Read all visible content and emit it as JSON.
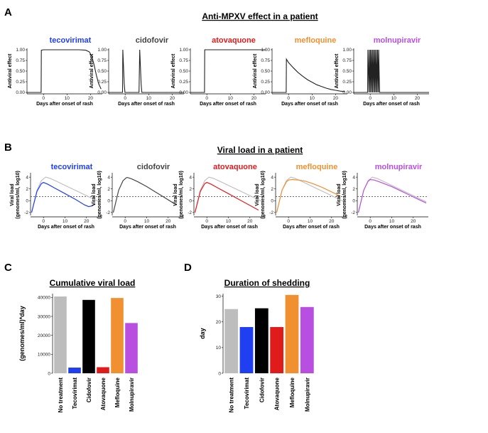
{
  "colors": {
    "tecovirimat": "#1f3ff0",
    "cidofovir": "#444444",
    "atovaquone": "#e01b1b",
    "mefloquine": "#f09030",
    "molnupiravir": "#b84fe0",
    "no_treatment": "#bdbdbd",
    "black": "#000000"
  },
  "panels": {
    "A": {
      "letter": "A",
      "title": "Anti-MPXV effect in a patient",
      "ylabel": "Antiviral effect",
      "xlabel": "Days after onset of rash",
      "yticks": [
        "0.00",
        "0.25",
        "0.50",
        "0.75",
        "1.00"
      ],
      "xticks": [
        "0",
        "10",
        "20"
      ],
      "drugs": [
        "tecovirimat",
        "cidofovir",
        "atovaquone",
        "mefloquine",
        "molnupiravir"
      ]
    },
    "B": {
      "letter": "B",
      "title": "Viral load in a patient",
      "ylabel1": "Viral load",
      "ylabel2": "(genomes/ml, log10)",
      "xlabel": "Days after onset of rash",
      "yticks": [
        "-2",
        "0",
        "2",
        "4"
      ],
      "xticks": [
        "0",
        "10",
        "20"
      ],
      "drugs": [
        "tecovirimat",
        "cidofovir",
        "atovaquone",
        "mefloquine",
        "molnupiravir"
      ]
    },
    "C": {
      "letter": "C",
      "title": "Cumulative viral load",
      "ylabel": "(genomes/ml)*day",
      "yticks": [
        "0",
        "10000",
        "20000",
        "30000",
        "40000"
      ]
    },
    "D": {
      "letter": "D",
      "title": "Duration of shedding",
      "ylabel": "day",
      "yticks": [
        "0",
        "10",
        "20",
        "30"
      ]
    }
  },
  "chart_data": [
    {
      "id": "A",
      "type": "line",
      "title": "Anti-MPXV effect in a patient",
      "xlabel": "Days after onset of rash",
      "ylabel": "Antiviral effect",
      "xlim": [
        -7,
        25
      ],
      "ylim": [
        0,
        1
      ],
      "series": [
        {
          "name": "tecovirimat",
          "x": [
            -7,
            -1,
            -0.9,
            0,
            5,
            10,
            15,
            18,
            19.5,
            20.5,
            21.5,
            22.5,
            23.5,
            24.5
          ],
          "y": [
            0,
            0,
            0.99,
            1,
            1,
            1,
            1,
            0.99,
            0.95,
            0.85,
            0.65,
            0.4,
            0.2,
            0.08
          ]
        },
        {
          "name": "cidofovir",
          "x": [
            -7,
            -1.1,
            -1,
            -0.4,
            -0.1,
            5.9,
            6.2,
            6.8,
            7.1,
            25
          ],
          "y": [
            0,
            0,
            1,
            0.2,
            0,
            0,
            1,
            0.2,
            0,
            0
          ]
        },
        {
          "name": "atovaquone",
          "x": [
            -7,
            -1,
            -0.9,
            5,
            10,
            15,
            20,
            25
          ],
          "y": [
            0,
            0,
            1,
            1,
            1,
            1,
            1,
            1
          ]
        },
        {
          "name": "mefloquine",
          "x": [
            -7,
            -1,
            -0.9,
            0,
            2,
            4,
            6,
            8,
            10,
            12,
            14,
            16,
            18,
            20,
            22,
            24
          ],
          "y": [
            0,
            0,
            0.78,
            0.7,
            0.58,
            0.47,
            0.38,
            0.3,
            0.24,
            0.18,
            0.14,
            0.1,
            0.07,
            0.05,
            0.03,
            0.02
          ]
        },
        {
          "name": "molnupiravir",
          "x": [
            -7,
            -1.1,
            -1,
            -0.5,
            -0.4,
            0,
            0.1,
            0.5,
            0.6,
            1,
            1.1,
            1.5,
            1.6,
            2,
            2.1,
            2.5,
            2.6,
            3,
            3.1,
            3.5,
            3.6,
            4,
            4.1,
            25
          ],
          "y": [
            0,
            0,
            1,
            0,
            1,
            0,
            1,
            0,
            1,
            0,
            1,
            0,
            1,
            0,
            1,
            0,
            1,
            0,
            1,
            0,
            1,
            0,
            0,
            0
          ]
        }
      ]
    },
    {
      "id": "B",
      "type": "line",
      "title": "Viral load in a patient",
      "xlabel": "Days after onset of rash",
      "ylabel": "Viral load (genomes/ml, log10)",
      "xlim": [
        -6,
        27
      ],
      "ylim": [
        -2.5,
        4.5
      ],
      "threshold": 0.7,
      "no_treatment": {
        "x": [
          -5.5,
          -3,
          -1,
          1,
          3,
          6,
          10,
          14,
          18,
          22,
          26
        ],
        "y": [
          -2,
          1.8,
          3.4,
          4.0,
          3.8,
          3.3,
          2.6,
          1.9,
          1.2,
          0.5,
          -0.2
        ]
      },
      "series": [
        {
          "name": "tecovirimat",
          "x": [
            -5.5,
            -3,
            -1,
            0,
            2,
            5,
            10,
            15,
            19,
            21,
            22.5,
            24
          ],
          "y": [
            -2,
            1.6,
            2.9,
            3.1,
            2.8,
            2.2,
            1.2,
            0.2,
            -0.7,
            -1.0,
            -0.9,
            -0.5
          ]
        },
        {
          "name": "cidofovir",
          "x": [
            -5.5,
            -3,
            -1,
            0.5,
            1,
            3,
            6,
            10,
            14,
            18,
            22,
            24
          ],
          "y": [
            -2,
            1.8,
            3.4,
            3.9,
            3.95,
            3.7,
            3.2,
            2.4,
            1.5,
            0.6,
            -0.3,
            -0.7
          ]
        },
        {
          "name": "atovaquone",
          "x": [
            -5.5,
            -3,
            -1,
            0,
            2,
            5,
            10,
            15,
            20,
            24
          ],
          "y": [
            -2,
            1.6,
            2.9,
            3.1,
            2.8,
            2.2,
            1.2,
            0.2,
            -0.8,
            -1.6
          ]
        },
        {
          "name": "mefloquine",
          "x": [
            -5.5,
            -3,
            -1,
            0,
            1.5,
            3,
            5,
            8,
            12,
            16,
            20,
            24
          ],
          "y": [
            -2,
            1.8,
            3.2,
            3.5,
            3.6,
            3.55,
            3.5,
            3.3,
            2.8,
            2.2,
            1.5,
            0.8
          ]
        },
        {
          "name": "molnupiravir",
          "x": [
            -5.5,
            -3,
            -1,
            0,
            2,
            5,
            10,
            14,
            18,
            22,
            26
          ],
          "y": [
            -2,
            1.8,
            3.3,
            3.6,
            3.5,
            3.1,
            2.4,
            1.7,
            1.0,
            0.3,
            -0.4
          ]
        }
      ]
    },
    {
      "id": "C",
      "type": "bar",
      "title": "Cumulative viral load",
      "ylabel": "(genomes/ml)*day",
      "ylim": [
        0,
        42000
      ],
      "categories": [
        "No treatment",
        "Tecovirimat",
        "Cidofovir",
        "Atovaquone",
        "Mefloquine",
        "Molnupiravir"
      ],
      "values": [
        40500,
        3000,
        38700,
        3200,
        39700,
        26500
      ]
    },
    {
      "id": "D",
      "type": "bar",
      "title": "Duration of shedding",
      "ylabel": "day",
      "ylim": [
        0,
        31
      ],
      "categories": [
        "No treatment",
        "Tecovirimat",
        "Cidofovir",
        "Atovaquone",
        "Mefloquine",
        "Molnupiravir"
      ],
      "values": [
        25,
        18,
        25.3,
        18,
        30.5,
        25.8
      ]
    }
  ]
}
